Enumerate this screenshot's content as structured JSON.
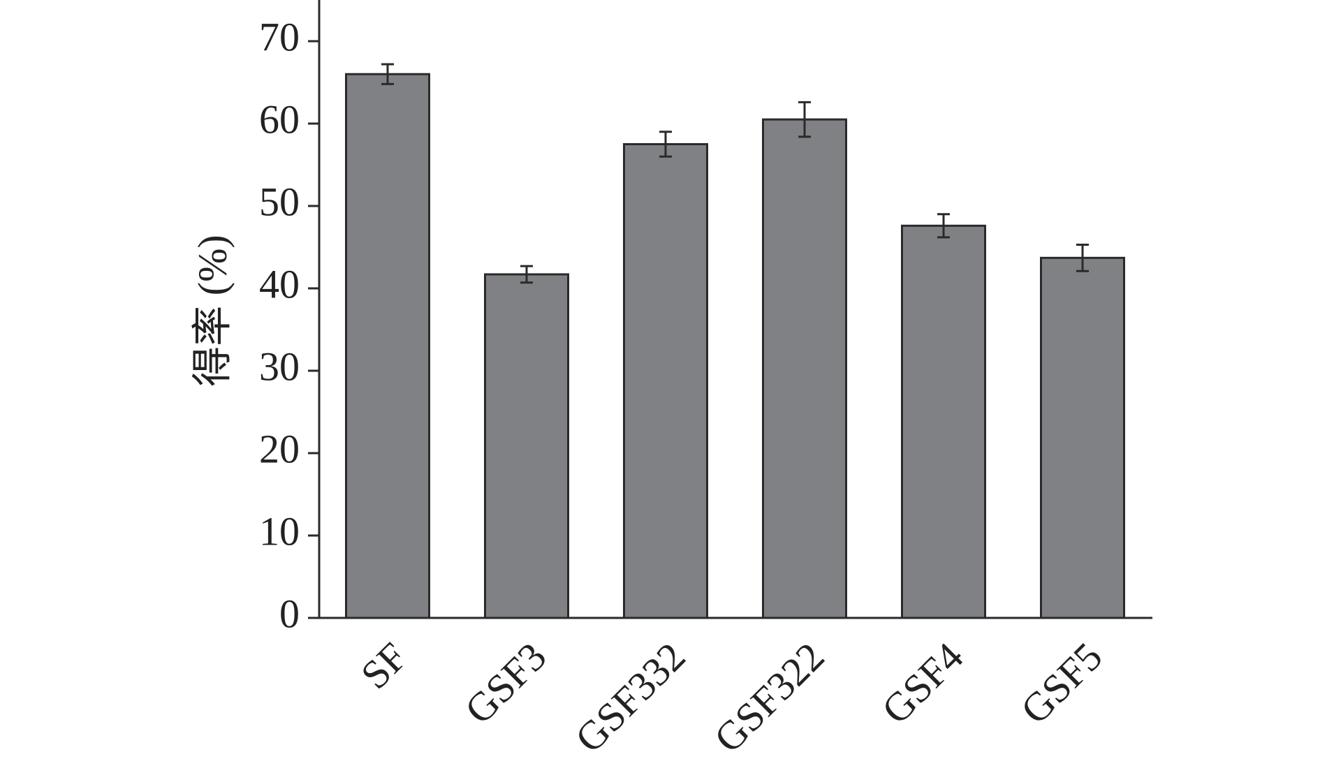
{
  "chart_data": {
    "type": "bar",
    "y_label": "得率 (%)",
    "categories": [
      "SF",
      "GSF3",
      "GSF332",
      "GSF322",
      "GSF4",
      "GSF5"
    ],
    "values": [
      66,
      41.7,
      57.5,
      60.5,
      47.6,
      43.7
    ],
    "errors": [
      1.2,
      1.0,
      1.5,
      2.1,
      1.4,
      1.6
    ],
    "color": "#808185",
    "ylim": [
      0,
      75
    ],
    "yticks": [
      0,
      10,
      20,
      30,
      40,
      50,
      60,
      70
    ],
    "grid": false
  }
}
